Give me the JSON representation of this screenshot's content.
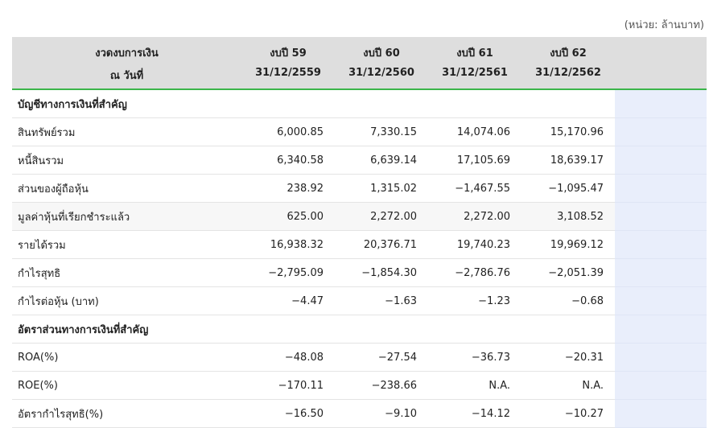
{
  "unit_note": "(หน่วย: ล้านบาท)",
  "header": {
    "label_line1": "งวดงบการเงิน",
    "label_line2": "ณ วันที่",
    "periods": [
      {
        "name": "งบปี 59",
        "date": "31/12/2559"
      },
      {
        "name": "งบปี 60",
        "date": "31/12/2560"
      },
      {
        "name": "งบปี 61",
        "date": "31/12/2561"
      },
      {
        "name": "งบปี 62",
        "date": "31/12/2562"
      }
    ]
  },
  "rows": [
    {
      "label": "บัญชีทางการเงินที่สำคัญ",
      "section": true,
      "values": [
        "",
        "",
        "",
        ""
      ]
    },
    {
      "label": "สินทรัพย์รวม",
      "values": [
        "6,000.85",
        "7,330.15",
        "14,074.06",
        "15,170.96"
      ]
    },
    {
      "label": "หนี้สินรวม",
      "values": [
        "6,340.58",
        "6,639.14",
        "17,105.69",
        "18,639.17"
      ]
    },
    {
      "label": "ส่วนของผู้ถือหุ้น",
      "values": [
        "238.92",
        "1,315.02",
        "−1,467.55",
        "−1,095.47"
      ]
    },
    {
      "label": "มูลค่าหุ้นที่เรียกชำระแล้ว",
      "values": [
        "625.00",
        "2,272.00",
        "2,272.00",
        "3,108.52"
      ]
    },
    {
      "label": "รายได้รวม",
      "values": [
        "16,938.32",
        "20,376.71",
        "19,740.23",
        "19,969.12"
      ]
    },
    {
      "label": "กำไรสุทธิ",
      "values": [
        "−2,795.09",
        "−1,854.30",
        "−2,786.76",
        "−2,051.39"
      ]
    },
    {
      "label": "กำไรต่อหุ้น (บาท)",
      "values": [
        "−4.47",
        "−1.63",
        "−1.23",
        "−0.68"
      ]
    },
    {
      "label": "อัตราส่วนทางการเงินที่สำคัญ",
      "section": true,
      "values": [
        "",
        "",
        "",
        ""
      ]
    },
    {
      "label": "ROA(%)",
      "values": [
        "−48.08",
        "−27.54",
        "−36.73",
        "−20.31"
      ]
    },
    {
      "label": "ROE(%)",
      "values": [
        "−170.11",
        "−238.66",
        "N.A.",
        "N.A."
      ]
    },
    {
      "label": "อัตรากำไรสุทธิ(%)",
      "values": [
        "−16.50",
        "−9.10",
        "−14.12",
        "−10.27"
      ]
    }
  ]
}
